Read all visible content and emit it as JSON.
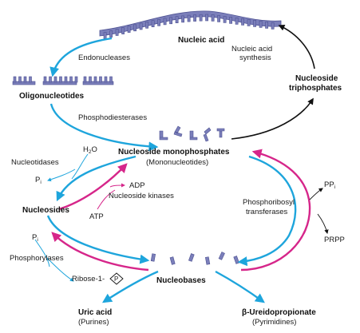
{
  "colors": {
    "blue": "#1ea5dc",
    "magenta": "#d6268a",
    "black": "#111111",
    "monomer": "#7b7fba",
    "monomer_stroke": "#4d5192"
  },
  "nodes": {
    "nucleic_acid": "Nucleic acid",
    "oligonucleotides": "Oligonucleotides",
    "nucleoside_monophosphates": "Nucleoside monophosphates",
    "mononucleotides": "(Mononucleotides)",
    "nucleoside_triphosphates_line1": "Nucleoside",
    "nucleoside_triphosphates_line2": "triphosphates",
    "nucleosides": "Nucleosides",
    "nucleobases": "Nucleobases",
    "uric_acid": "Uric acid",
    "purines": "(Purines)",
    "ureidopropionate": "β-Ureidopropionate",
    "pyrimidines": "(Pyrimidines)"
  },
  "enzymes": {
    "endonucleases": "Endonucleases",
    "phosphodiesterases": "Phosphodiesterases",
    "nucleic_acid_synthesis_line1": "Nucleic acid",
    "nucleic_acid_synthesis_line2": "synthesis",
    "nucleotidases": "Nucleotidases",
    "nucleoside_kinases": "Nucleoside kinases",
    "phosphoribosyl_line1": "Phosphoribosyl",
    "phosphoribosyl_line2": "transferases",
    "phosphorylases": "Phosphorylases"
  },
  "small_molecules": {
    "h2o_main": "H",
    "h2o_sub": "2",
    "h2o_end": "O",
    "pi_main": "P",
    "pi_sub": "i",
    "adp": "ADP",
    "atp": "ATP",
    "ppi_main": "PP",
    "ppi_sub": "i",
    "prpp": "PRPP",
    "ribose": "Ribose-1-",
    "phosphate_symbol": "P"
  }
}
